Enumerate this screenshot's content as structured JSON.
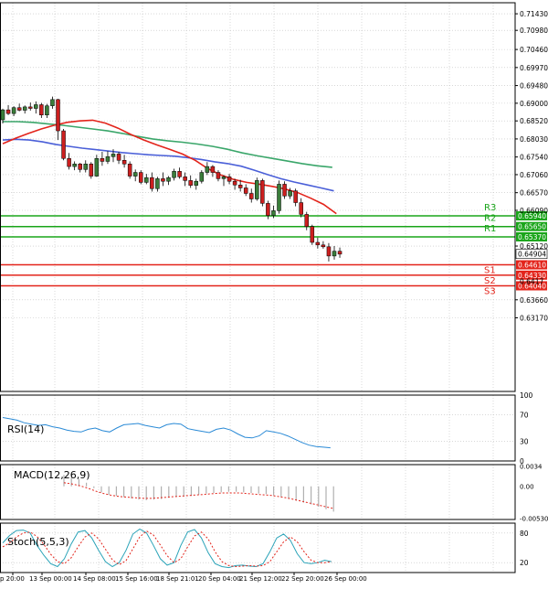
{
  "colors": {
    "background": "#ffffff",
    "grid": "#c0c0c0",
    "axis": "#000000",
    "candle_up": "#3a7d3a",
    "candle_down": "#cc1f1f",
    "ma_fast": "#e3241b",
    "ma_mid": "#4a5fd8",
    "ma_slow": "#3aa66a",
    "resistance": "#1aa51a",
    "support": "#e3241b",
    "rsi": "#2a8ad6",
    "macd_hist": "#b0b0b0",
    "macd_signal": "#e3241b",
    "stoch_main": "#2aa3b8",
    "stoch_signal": "#e3241b",
    "price_tag": "#000000"
  },
  "chart_data": [
    {
      "type": "candlestick",
      "name": "price",
      "title": "",
      "ylim": [
        0.6117,
        0.7173
      ],
      "y_ticks": [
        "0.71430",
        "0.70980",
        "0.70460",
        "0.69970",
        "0.69480",
        "0.69000",
        "0.68520",
        "0.68030",
        "0.67540",
        "0.67060",
        "0.66570",
        "0.66090",
        "0.65120",
        "0.63660",
        "0.63170"
      ],
      "grid": true,
      "candles": [
        [
          0.6855,
          0.6885,
          0.6845,
          0.6882
        ],
        [
          0.6882,
          0.6895,
          0.6868,
          0.6872
        ],
        [
          0.6872,
          0.6892,
          0.6865,
          0.6888
        ],
        [
          0.6888,
          0.6899,
          0.6878,
          0.6881
        ],
        [
          0.6881,
          0.6894,
          0.6872,
          0.689
        ],
        [
          0.689,
          0.6902,
          0.688,
          0.6886
        ],
        [
          0.6886,
          0.6905,
          0.6872,
          0.6896
        ],
        [
          0.6896,
          0.6901,
          0.686,
          0.6868
        ],
        [
          0.6868,
          0.6898,
          0.686,
          0.6893
        ],
        [
          0.6893,
          0.6918,
          0.6885,
          0.691
        ],
        [
          0.691,
          0.6912,
          0.68,
          0.6825
        ],
        [
          0.6825,
          0.683,
          0.6745,
          0.675
        ],
        [
          0.675,
          0.6765,
          0.672,
          0.6728
        ],
        [
          0.6728,
          0.6742,
          0.6718,
          0.6735
        ],
        [
          0.6735,
          0.6738,
          0.6712,
          0.672
        ],
        [
          0.672,
          0.6745,
          0.6712,
          0.6735
        ],
        [
          0.6735,
          0.674,
          0.6695,
          0.6702
        ],
        [
          0.6702,
          0.676,
          0.67,
          0.675
        ],
        [
          0.675,
          0.6768,
          0.673,
          0.6742
        ],
        [
          0.6742,
          0.677,
          0.6735,
          0.6755
        ],
        [
          0.6755,
          0.6775,
          0.674,
          0.6762
        ],
        [
          0.6762,
          0.6768,
          0.6735,
          0.6745
        ],
        [
          0.6745,
          0.676,
          0.6725,
          0.6735
        ],
        [
          0.6735,
          0.6742,
          0.6695,
          0.6702
        ],
        [
          0.6702,
          0.672,
          0.6688,
          0.6712
        ],
        [
          0.6712,
          0.6718,
          0.668,
          0.6685
        ],
        [
          0.6685,
          0.6708,
          0.668,
          0.6698
        ],
        [
          0.6698,
          0.6712,
          0.666,
          0.6668
        ],
        [
          0.6668,
          0.67,
          0.666,
          0.6695
        ],
        [
          0.6695,
          0.6712,
          0.6675,
          0.6688
        ],
        [
          0.6688,
          0.6702,
          0.6678,
          0.6698
        ],
        [
          0.6698,
          0.6722,
          0.669,
          0.6715
        ],
        [
          0.6715,
          0.6725,
          0.6695,
          0.67
        ],
        [
          0.67,
          0.6712,
          0.6675,
          0.669
        ],
        [
          0.669,
          0.6704,
          0.667,
          0.6677
        ],
        [
          0.6677,
          0.6695,
          0.6665,
          0.6688
        ],
        [
          0.6688,
          0.6718,
          0.6682,
          0.6712
        ],
        [
          0.6712,
          0.674,
          0.6705,
          0.6728
        ],
        [
          0.6728,
          0.6732,
          0.67,
          0.6712
        ],
        [
          0.6712,
          0.6718,
          0.6688,
          0.6695
        ],
        [
          0.6695,
          0.6705,
          0.6675,
          0.67
        ],
        [
          0.67,
          0.6708,
          0.668,
          0.6688
        ],
        [
          0.6688,
          0.6695,
          0.6665,
          0.6678
        ],
        [
          0.6678,
          0.6692,
          0.666,
          0.667
        ],
        [
          0.667,
          0.668,
          0.6648,
          0.6655
        ],
        [
          0.6655,
          0.6668,
          0.663,
          0.664
        ],
        [
          0.664,
          0.6698,
          0.6635,
          0.669
        ],
        [
          0.669,
          0.6695,
          0.662,
          0.6628
        ],
        [
          0.6628,
          0.6635,
          0.6585,
          0.6595
        ],
        [
          0.6595,
          0.6622,
          0.6588,
          0.6608
        ],
        [
          0.6608,
          0.669,
          0.66,
          0.668
        ],
        [
          0.668,
          0.6688,
          0.664,
          0.6648
        ],
        [
          0.6648,
          0.667,
          0.664,
          0.6662
        ],
        [
          0.6662,
          0.6668,
          0.662,
          0.663
        ],
        [
          0.663,
          0.6642,
          0.659,
          0.6598
        ],
        [
          0.6598,
          0.6605,
          0.6555,
          0.6565
        ],
        [
          0.6565,
          0.657,
          0.6515,
          0.6522
        ],
        [
          0.6522,
          0.6535,
          0.6505,
          0.6515
        ],
        [
          0.6515,
          0.6525,
          0.6505,
          0.651
        ],
        [
          0.651,
          0.652,
          0.647,
          0.6485
        ],
        [
          0.6485,
          0.6512,
          0.6475,
          0.6498
        ],
        [
          0.6498,
          0.6508,
          0.648,
          0.649
        ]
      ],
      "ma_fast": [
        0.679,
        0.6805,
        0.6818,
        0.683,
        0.684,
        0.6848,
        0.6852,
        0.6854,
        0.6846,
        0.6832,
        0.6815,
        0.68,
        0.6787,
        0.6775,
        0.6762,
        0.6745,
        0.6722,
        0.6705,
        0.6693,
        0.6685,
        0.668,
        0.6674,
        0.6667,
        0.6657,
        0.6642,
        0.6625,
        0.66
      ],
      "ma_mid": [
        0.68,
        0.6802,
        0.68,
        0.6795,
        0.6788,
        0.6783,
        0.6778,
        0.6774,
        0.677,
        0.6766,
        0.6763,
        0.676,
        0.6758,
        0.6756,
        0.6752,
        0.6747,
        0.6741,
        0.6736,
        0.6729,
        0.6718,
        0.6706,
        0.6695,
        0.6686,
        0.6678,
        0.667,
        0.6662
      ],
      "ma_slow": [
        0.685,
        0.685,
        0.6848,
        0.6844,
        0.684,
        0.6835,
        0.683,
        0.6825,
        0.6818,
        0.681,
        0.6803,
        0.6798,
        0.6794,
        0.6789,
        0.6783,
        0.6775,
        0.6765,
        0.6757,
        0.675,
        0.6743,
        0.6736,
        0.673,
        0.6726
      ],
      "levels": [
        {
          "label": "R3",
          "value": 0.6594,
          "value_text": "0.65940",
          "kind": "resistance"
        },
        {
          "label": "R2",
          "value": 0.6565,
          "value_text": "0.65650",
          "kind": "resistance"
        },
        {
          "label": "R1",
          "value": 0.6537,
          "value_text": "0.65370",
          "kind": "resistance"
        },
        {
          "label": "S1",
          "value": 0.6461,
          "value_text": "0.64610",
          "kind": "support"
        },
        {
          "label": "S2",
          "value": 0.6433,
          "value_text": "0.64330",
          "kind": "support"
        },
        {
          "label": "S3",
          "value": 0.6404,
          "value_text": "0.64040",
          "kind": "support"
        }
      ],
      "last_price": 0.64904,
      "last_price_text": "0.64904",
      "partial_tick_text": "0.6417"
    },
    {
      "type": "line",
      "name": "RSI(14)",
      "ylim": [
        0,
        100
      ],
      "y_ticks": [
        "100",
        "70",
        "30",
        "0"
      ],
      "values": [
        66,
        64,
        62,
        58,
        56,
        54,
        55,
        52,
        50,
        47,
        45,
        44,
        48,
        50,
        46,
        44,
        50,
        55,
        56,
        57,
        54,
        52,
        50,
        55,
        57,
        56,
        49,
        47,
        45,
        43,
        48,
        50,
        47,
        41,
        36,
        35,
        38,
        46,
        44,
        42,
        38,
        33,
        28,
        24,
        22,
        21,
        20
      ]
    },
    {
      "type": "bar",
      "name": "MACD(12,26,9)",
      "ylim": [
        -0.0055,
        0.0036
      ],
      "y_ticks": [
        "0.0034",
        "0.00",
        "-0.005304"
      ],
      "histogram": [
        0.0019,
        0.0016,
        0.0012,
        0.0006,
        -0.0003,
        -0.001,
        -0.0014,
        -0.0016,
        -0.0018,
        -0.002,
        -0.0022,
        -0.0023,
        -0.0022,
        -0.0021,
        -0.0019,
        -0.0018,
        -0.0017,
        -0.0016,
        -0.0014,
        -0.0012,
        -0.0011,
        -0.001,
        -0.0009,
        -0.0009,
        -0.001,
        -0.0011,
        -0.0012,
        -0.0013,
        -0.0015,
        -0.0018,
        -0.0021,
        -0.0024,
        -0.0027,
        -0.003,
        -0.0034,
        -0.0038,
        -0.0042
      ],
      "signal": [
        0.0006,
        0.0004,
        0.0001,
        -0.0003,
        -0.0008,
        -0.0012,
        -0.0015,
        -0.0017,
        -0.0018,
        -0.0019,
        -0.002,
        -0.002,
        -0.0019,
        -0.0018,
        -0.0017,
        -0.0016,
        -0.0015,
        -0.0014,
        -0.0013,
        -0.0012,
        -0.0011,
        -0.0011,
        -0.0011,
        -0.0012,
        -0.0013,
        -0.0014,
        -0.0015,
        -0.0017,
        -0.0019,
        -0.0022,
        -0.0025,
        -0.0028,
        -0.0031,
        -0.0034,
        -0.0037
      ]
    },
    {
      "type": "line",
      "name": "Stoch(5,5,3)",
      "ylim": [
        0,
        100
      ],
      "y_ticks": [
        "80",
        "20"
      ],
      "main": [
        60,
        75,
        85,
        86,
        80,
        55,
        35,
        18,
        12,
        28,
        58,
        82,
        85,
        70,
        45,
        22,
        12,
        20,
        45,
        78,
        88,
        80,
        55,
        28,
        15,
        20,
        55,
        82,
        87,
        70,
        40,
        18,
        12,
        10,
        14,
        15,
        13,
        12,
        18,
        42,
        70,
        78,
        65,
        38,
        20,
        18,
        20,
        25,
        22
      ],
      "signal": [
        52,
        60,
        72,
        80,
        82,
        73,
        57,
        37,
        22,
        18,
        30,
        52,
        72,
        80,
        68,
        47,
        26,
        16,
        24,
        48,
        72,
        84,
        76,
        56,
        34,
        20,
        28,
        52,
        74,
        82,
        68,
        42,
        22,
        14,
        12,
        13,
        14,
        13,
        14,
        22,
        42,
        62,
        72,
        62,
        42,
        25,
        20,
        20,
        22
      ]
    }
  ],
  "x_axis": {
    "tick_labels": [
      "p 20:00",
      "13 Sep 00:00",
      "14 Sep 08:00",
      "15 Sep 16:00",
      "18 Sep 21:01",
      "20 Sep 04:00",
      "21 Sep 12:00",
      "22 Sep 20:00",
      "26 Sep 00:00"
    ]
  }
}
